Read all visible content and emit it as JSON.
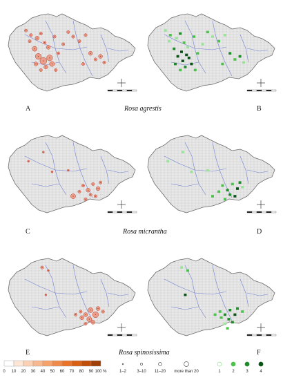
{
  "colors": {
    "country_fill": "#e8e8e8",
    "grid": "#c8c8c8",
    "rivers": "#6f7fd0",
    "border": "#6a6a6a",
    "red_dot": "#c0382b",
    "red_light": "#e8a08a",
    "green_light": "#9be39b",
    "green_mid": "#4cc24c",
    "green_dark": "#1f8a2a",
    "green_darkest": "#0b5216",
    "ramp": [
      "#ffffff",
      "#fde6d6",
      "#fbd0b4",
      "#f8b98f",
      "#f5a26b",
      "#f08a48",
      "#e87329",
      "#d95f12",
      "#c04e08",
      "#a03f04"
    ]
  },
  "rows": [
    {
      "species": "Rosa agrestis",
      "left_label": "A",
      "right_label": "B",
      "red_points": [
        [
          0.12,
          0.22,
          2
        ],
        [
          0.16,
          0.28,
          2
        ],
        [
          0.21,
          0.32,
          3
        ],
        [
          0.24,
          0.26,
          2
        ],
        [
          0.27,
          0.38,
          2
        ],
        [
          0.3,
          0.44,
          3
        ],
        [
          0.35,
          0.3,
          2
        ],
        [
          0.19,
          0.46,
          4
        ],
        [
          0.22,
          0.56,
          5
        ],
        [
          0.26,
          0.62,
          6
        ],
        [
          0.31,
          0.58,
          5
        ],
        [
          0.28,
          0.7,
          3
        ],
        [
          0.33,
          0.66,
          4
        ],
        [
          0.38,
          0.52,
          2
        ],
        [
          0.42,
          0.4,
          2
        ],
        [
          0.46,
          0.24,
          2
        ],
        [
          0.5,
          0.3,
          2
        ],
        [
          0.55,
          0.36,
          2
        ],
        [
          0.6,
          0.28,
          2
        ],
        [
          0.64,
          0.52,
          3
        ],
        [
          0.68,
          0.6,
          2
        ],
        [
          0.72,
          0.56,
          3
        ],
        [
          0.75,
          0.64,
          2
        ],
        [
          0.58,
          0.66,
          2
        ],
        [
          0.36,
          0.74,
          2
        ],
        [
          0.2,
          0.66,
          3
        ],
        [
          0.24,
          0.74,
          2
        ],
        [
          0.15,
          0.36,
          2
        ]
      ],
      "green_points": [
        [
          0.12,
          0.22,
          1
        ],
        [
          0.16,
          0.28,
          2
        ],
        [
          0.21,
          0.32,
          1
        ],
        [
          0.24,
          0.26,
          3
        ],
        [
          0.27,
          0.38,
          2
        ],
        [
          0.3,
          0.44,
          1
        ],
        [
          0.35,
          0.3,
          2
        ],
        [
          0.19,
          0.46,
          3
        ],
        [
          0.22,
          0.56,
          4
        ],
        [
          0.26,
          0.62,
          4
        ],
        [
          0.31,
          0.58,
          4
        ],
        [
          0.28,
          0.7,
          3
        ],
        [
          0.33,
          0.66,
          4
        ],
        [
          0.38,
          0.52,
          2
        ],
        [
          0.42,
          0.4,
          1
        ],
        [
          0.46,
          0.24,
          2
        ],
        [
          0.5,
          0.3,
          1
        ],
        [
          0.55,
          0.36,
          2
        ],
        [
          0.6,
          0.28,
          1
        ],
        [
          0.64,
          0.52,
          3
        ],
        [
          0.68,
          0.6,
          2
        ],
        [
          0.72,
          0.56,
          3
        ],
        [
          0.75,
          0.64,
          1
        ],
        [
          0.58,
          0.66,
          2
        ],
        [
          0.36,
          0.74,
          2
        ],
        [
          0.2,
          0.66,
          3
        ],
        [
          0.24,
          0.74,
          2
        ],
        [
          0.15,
          0.36,
          1
        ],
        [
          0.25,
          0.5,
          4
        ],
        [
          0.29,
          0.54,
          4
        ]
      ]
    },
    {
      "species": "Rosa micrantha",
      "left_label": "C",
      "right_label": "D",
      "red_points": [
        [
          0.14,
          0.34,
          1
        ],
        [
          0.26,
          0.22,
          1
        ],
        [
          0.33,
          0.48,
          1
        ],
        [
          0.46,
          0.46,
          1
        ],
        [
          0.58,
          0.66,
          2
        ],
        [
          0.62,
          0.72,
          3
        ],
        [
          0.66,
          0.64,
          2
        ],
        [
          0.7,
          0.7,
          3
        ],
        [
          0.64,
          0.78,
          2
        ],
        [
          0.55,
          0.74,
          2
        ],
        [
          0.5,
          0.8,
          4
        ],
        [
          0.72,
          0.62,
          2
        ],
        [
          0.6,
          0.84,
          2
        ],
        [
          0.68,
          0.8,
          2
        ]
      ],
      "green_points": [
        [
          0.14,
          0.34,
          1
        ],
        [
          0.26,
          0.22,
          1
        ],
        [
          0.33,
          0.48,
          1
        ],
        [
          0.46,
          0.46,
          1
        ],
        [
          0.58,
          0.66,
          2
        ],
        [
          0.62,
          0.72,
          3
        ],
        [
          0.66,
          0.64,
          2
        ],
        [
          0.7,
          0.7,
          4
        ],
        [
          0.64,
          0.78,
          3
        ],
        [
          0.55,
          0.74,
          2
        ],
        [
          0.5,
          0.8,
          2
        ],
        [
          0.72,
          0.62,
          3
        ],
        [
          0.6,
          0.84,
          2
        ],
        [
          0.68,
          0.8,
          4
        ],
        [
          0.74,
          0.68,
          1
        ]
      ]
    },
    {
      "species": "Rosa spinosissima",
      "left_label": "E",
      "right_label": "F",
      "red_points": [
        [
          0.25,
          0.12,
          2
        ],
        [
          0.3,
          0.16,
          1
        ],
        [
          0.28,
          0.48,
          1
        ],
        [
          0.56,
          0.7,
          2
        ],
        [
          0.6,
          0.74,
          3
        ],
        [
          0.64,
          0.68,
          4
        ],
        [
          0.68,
          0.74,
          5
        ],
        [
          0.63,
          0.8,
          4
        ],
        [
          0.57,
          0.78,
          3
        ],
        [
          0.7,
          0.66,
          3
        ],
        [
          0.74,
          0.7,
          2
        ],
        [
          0.52,
          0.74,
          2
        ],
        [
          0.6,
          0.86,
          2
        ],
        [
          0.66,
          0.84,
          3
        ]
      ],
      "green_points": [
        [
          0.25,
          0.12,
          1
        ],
        [
          0.3,
          0.16,
          2
        ],
        [
          0.28,
          0.48,
          4
        ],
        [
          0.56,
          0.7,
          2
        ],
        [
          0.6,
          0.74,
          3
        ],
        [
          0.64,
          0.68,
          3
        ],
        [
          0.68,
          0.74,
          4
        ],
        [
          0.63,
          0.8,
          3
        ],
        [
          0.57,
          0.78,
          2
        ],
        [
          0.7,
          0.66,
          3
        ],
        [
          0.74,
          0.7,
          2
        ],
        [
          0.52,
          0.74,
          2
        ],
        [
          0.6,
          0.86,
          1
        ],
        [
          0.66,
          0.84,
          3
        ],
        [
          0.62,
          0.92,
          2
        ]
      ]
    }
  ],
  "legend": {
    "percent_ticks": [
      "0",
      "10",
      "20",
      "30",
      "40",
      "50",
      "60",
      "70",
      "80",
      "90",
      "100 %"
    ],
    "count_labels": [
      "1–2",
      "3–10",
      "11–20",
      "more than 20"
    ],
    "green_labels": [
      "1",
      "2",
      "3",
      "4"
    ]
  }
}
